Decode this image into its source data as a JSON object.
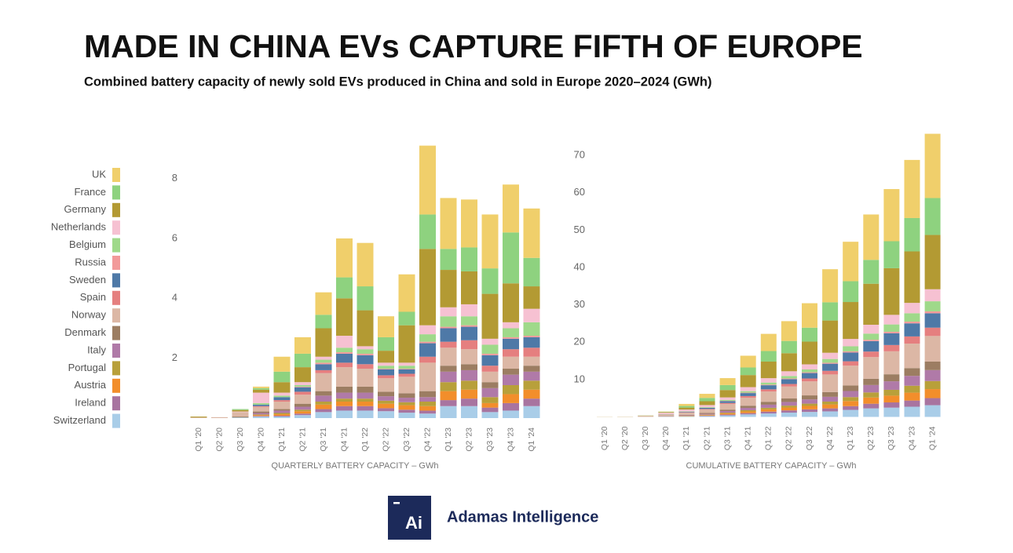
{
  "title": "MADE IN CHINA EVs CAPTURE FIFTH OF EUROPE",
  "subtitle": "Combined battery capacity of newly sold EVs produced in China and sold in Europe 2020–2024 (GWh)",
  "logo": {
    "mark": "Ai",
    "name": "Adamas Intelligence"
  },
  "chart_data": [
    {
      "type": "bar",
      "stacked": true,
      "x_label": "QUARTERLY BATTERY CAPACITY – GWh",
      "categories": [
        "Q1 '20",
        "Q2 '20",
        "Q3 '20",
        "Q4 '20",
        "Q1 '21",
        "Q2 '21",
        "Q3 '21",
        "Q4 '21",
        "Q1 '22",
        "Q2 '22",
        "Q3 '22",
        "Q4 '22",
        "Q1 '23",
        "Q2 '23",
        "Q3 '23",
        "Q4 '23",
        "Q1 '24"
      ],
      "ylim": [
        0,
        9.3
      ],
      "yticks": [
        2,
        4,
        6,
        8
      ],
      "series": [
        {
          "name": "UK",
          "color": "#f0cf6b",
          "values": [
            0,
            0,
            0,
            0.05,
            0.5,
            0.55,
            0.75,
            1.3,
            1.45,
            0.7,
            1.25,
            2.3,
            1.7,
            1.6,
            1.8,
            1.6,
            1.65
          ]
        },
        {
          "name": "France",
          "color": "#8ed27f",
          "values": [
            0,
            0,
            0.03,
            0.05,
            0.35,
            0.45,
            0.45,
            0.7,
            0.8,
            0.45,
            0.45,
            1.15,
            0.7,
            0.8,
            0.85,
            1.7,
            0.95
          ]
        },
        {
          "name": "Germany",
          "color": "#b39a33",
          "values": [
            0.03,
            0,
            0.05,
            0.1,
            0.35,
            0.5,
            0.95,
            1.25,
            1.2,
            0.4,
            1.25,
            2.55,
            1.25,
            1.1,
            1.5,
            1.3,
            0.75
          ]
        },
        {
          "name": "Netherlands",
          "color": "#f6c1d2",
          "values": [
            0,
            0,
            0.02,
            0.35,
            0.1,
            0.1,
            0.1,
            0.4,
            0.1,
            0.1,
            0.1,
            0.3,
            0.3,
            0.4,
            0.2,
            0.2,
            0.45
          ]
        },
        {
          "name": "Belgium",
          "color": "#9fd98a",
          "values": [
            0,
            0,
            0,
            0.05,
            0.05,
            0.05,
            0.1,
            0.15,
            0.15,
            0.1,
            0.1,
            0.25,
            0.35,
            0.3,
            0.3,
            0.3,
            0.45
          ]
        },
        {
          "name": "Russia",
          "color": "#f29a9a",
          "values": [
            0,
            0,
            0,
            0,
            0,
            0.02,
            0.05,
            0.05,
            0.05,
            0.02,
            0.02,
            0.05,
            0.05,
            0.05,
            0.05,
            0.05,
            0.05
          ]
        },
        {
          "name": "Sweden",
          "color": "#4e79a7",
          "values": [
            0,
            0,
            0,
            0.05,
            0.1,
            0.15,
            0.2,
            0.3,
            0.3,
            0.2,
            0.15,
            0.45,
            0.45,
            0.45,
            0.35,
            0.35,
            0.35
          ]
        },
        {
          "name": "Spain",
          "color": "#e57f7f",
          "values": [
            0,
            0,
            0,
            0.03,
            0.05,
            0.1,
            0.1,
            0.15,
            0.15,
            0.1,
            0.1,
            0.2,
            0.2,
            0.3,
            0.2,
            0.25,
            0.3
          ]
        },
        {
          "name": "Norway",
          "color": "#dcb7a5",
          "values": [
            0.02,
            0.03,
            0.15,
            0.15,
            0.25,
            0.3,
            0.6,
            0.65,
            0.6,
            0.45,
            0.55,
            0.95,
            0.6,
            0.5,
            0.35,
            0.4,
            0.3
          ]
        },
        {
          "name": "Denmark",
          "color": "#9c7d62",
          "values": [
            0,
            0,
            0.03,
            0.05,
            0.05,
            0.1,
            0.15,
            0.2,
            0.2,
            0.15,
            0.15,
            0.2,
            0.2,
            0.2,
            0.2,
            0.2,
            0.2
          ]
        },
        {
          "name": "Italy",
          "color": "#b07aa8",
          "values": [
            0,
            0,
            0,
            0.05,
            0.08,
            0.1,
            0.2,
            0.2,
            0.2,
            0.15,
            0.15,
            0.15,
            0.35,
            0.35,
            0.3,
            0.35,
            0.3
          ]
        },
        {
          "name": "Portugal",
          "color": "#b8a03a",
          "values": [
            0,
            0,
            0,
            0.02,
            0.04,
            0.05,
            0.1,
            0.1,
            0.1,
            0.1,
            0.1,
            0.15,
            0.3,
            0.3,
            0.2,
            0.3,
            0.3
          ]
        },
        {
          "name": "Austria",
          "color": "#f28e2b",
          "values": [
            0,
            0,
            0,
            0.03,
            0.05,
            0.08,
            0.15,
            0.15,
            0.15,
            0.15,
            0.15,
            0.15,
            0.3,
            0.3,
            0.15,
            0.3,
            0.3
          ]
        },
        {
          "name": "Ireland",
          "color": "#a874a0",
          "values": [
            0,
            0,
            0,
            0.02,
            0.03,
            0.05,
            0.1,
            0.15,
            0.15,
            0.1,
            0.1,
            0.1,
            0.2,
            0.25,
            0.15,
            0.25,
            0.25
          ]
        },
        {
          "name": "Switzerland",
          "color": "#a9cde8",
          "values": [
            0,
            0,
            0.02,
            0.05,
            0.05,
            0.1,
            0.2,
            0.25,
            0.25,
            0.23,
            0.18,
            0.15,
            0.4,
            0.4,
            0.2,
            0.25,
            0.4
          ]
        }
      ]
    },
    {
      "type": "bar",
      "stacked": true,
      "x_label": "CUMULATIVE BATTERY CAPACITY – GWh",
      "categories": [
        "Q1 '20",
        "Q2 '20",
        "Q3 '20",
        "Q4 '20",
        "Q1 '21",
        "Q2 '21",
        "Q3 '21",
        "Q4 '21",
        "Q1 '22",
        "Q2 '22",
        "Q3 '22",
        "Q4 '22",
        "Q1 '23",
        "Q2 '23",
        "Q3 '23",
        "Q4 '23",
        "Q1 '24"
      ],
      "ylim": [
        0,
        76
      ],
      "yticks": [
        10,
        20,
        30,
        40,
        50,
        60,
        70
      ],
      "series": [
        {
          "color": "#f0cf6b",
          "values": [
            0,
            0,
            0,
            0.05,
            0.55,
            1.1,
            1.85,
            3.15,
            4.6,
            5.3,
            6.55,
            8.85,
            10.55,
            12.15,
            13.95,
            15.55,
            17.2
          ]
        },
        {
          "color": "#8ed27f",
          "values": [
            0,
            0,
            0.03,
            0.08,
            0.43,
            0.88,
            1.33,
            2.03,
            2.83,
            3.28,
            3.73,
            4.88,
            5.58,
            6.38,
            7.23,
            8.93,
            9.88
          ]
        },
        {
          "color": "#b39a33",
          "values": [
            0.03,
            0.03,
            0.08,
            0.18,
            0.53,
            1.03,
            1.98,
            3.23,
            4.43,
            4.83,
            6.08,
            8.63,
            9.88,
            10.98,
            12.48,
            13.78,
            14.53
          ]
        },
        {
          "color": "#f6c1d2",
          "values": [
            0,
            0,
            0.02,
            0.37,
            0.47,
            0.57,
            0.67,
            1.07,
            1.17,
            1.27,
            1.37,
            1.67,
            1.97,
            2.37,
            2.57,
            2.77,
            3.22
          ]
        },
        {
          "color": "#9fd98a",
          "values": [
            0,
            0,
            0,
            0.05,
            0.1,
            0.15,
            0.25,
            0.4,
            0.55,
            0.65,
            0.75,
            1.0,
            1.35,
            1.65,
            1.95,
            2.25,
            2.7
          ]
        },
        {
          "color": "#f29a9a",
          "values": [
            0,
            0,
            0,
            0,
            0,
            0.02,
            0.07,
            0.12,
            0.17,
            0.19,
            0.21,
            0.26,
            0.31,
            0.36,
            0.41,
            0.46,
            0.51
          ]
        },
        {
          "color": "#4e79a7",
          "values": [
            0,
            0,
            0,
            0.05,
            0.15,
            0.3,
            0.5,
            0.8,
            1.1,
            1.3,
            1.45,
            1.9,
            2.35,
            2.8,
            3.15,
            3.5,
            3.85
          ]
        },
        {
          "color": "#e57f7f",
          "values": [
            0,
            0,
            0,
            0.03,
            0.08,
            0.18,
            0.28,
            0.43,
            0.58,
            0.68,
            0.78,
            0.98,
            1.18,
            1.48,
            1.68,
            1.93,
            2.23
          ]
        },
        {
          "color": "#dcb7a5",
          "values": [
            0.02,
            0.05,
            0.2,
            0.35,
            0.6,
            0.9,
            1.5,
            2.15,
            2.75,
            3.2,
            3.75,
            4.7,
            5.3,
            5.8,
            6.15,
            6.55,
            6.85
          ]
        },
        {
          "color": "#9c7d62",
          "values": [
            0,
            0,
            0.03,
            0.08,
            0.13,
            0.23,
            0.38,
            0.58,
            0.78,
            0.93,
            1.08,
            1.28,
            1.48,
            1.68,
            1.88,
            2.08,
            2.28
          ]
        },
        {
          "color": "#b07aa8",
          "values": [
            0,
            0,
            0,
            0.05,
            0.13,
            0.23,
            0.43,
            0.63,
            0.83,
            0.98,
            1.13,
            1.28,
            1.63,
            1.98,
            2.28,
            2.63,
            2.93
          ]
        },
        {
          "color": "#b8a03a",
          "values": [
            0,
            0,
            0,
            0.02,
            0.06,
            0.11,
            0.21,
            0.31,
            0.41,
            0.51,
            0.61,
            0.76,
            1.06,
            1.36,
            1.56,
            1.86,
            2.16
          ]
        },
        {
          "color": "#f28e2b",
          "values": [
            0,
            0,
            0,
            0.03,
            0.08,
            0.16,
            0.31,
            0.46,
            0.61,
            0.76,
            0.91,
            1.06,
            1.36,
            1.66,
            1.81,
            2.11,
            2.41
          ]
        },
        {
          "color": "#a874a0",
          "values": [
            0,
            0,
            0,
            0.02,
            0.05,
            0.1,
            0.2,
            0.35,
            0.5,
            0.6,
            0.7,
            0.8,
            1.0,
            1.25,
            1.4,
            1.65,
            1.9
          ]
        },
        {
          "color": "#a9cde8",
          "values": [
            0,
            0,
            0.02,
            0.07,
            0.12,
            0.22,
            0.42,
            0.67,
            0.92,
            1.15,
            1.33,
            1.48,
            1.88,
            2.28,
            2.48,
            2.73,
            3.13
          ]
        }
      ]
    }
  ]
}
